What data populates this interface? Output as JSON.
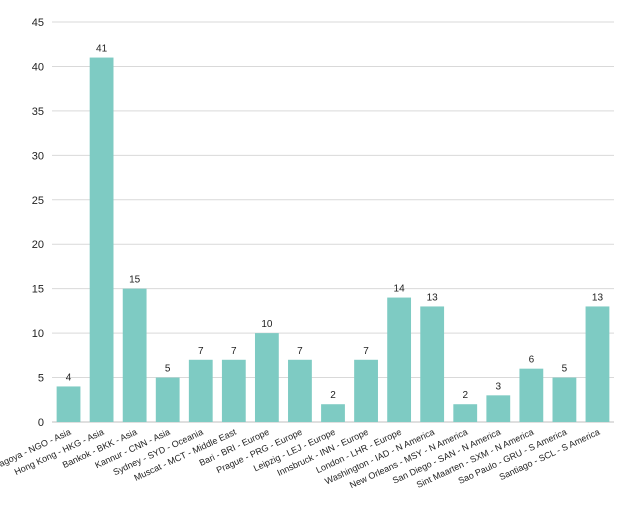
{
  "chart_data": {
    "type": "bar",
    "title": "",
    "xlabel": "",
    "ylabel": "",
    "ylim": [
      0,
      45
    ],
    "yticks": [
      0,
      5,
      10,
      15,
      20,
      25,
      30,
      35,
      40,
      45
    ],
    "grid": true,
    "legend": "none",
    "categories": [
      "Nagoya - NGO - Asia",
      "Hong Kong - HKG - Asia",
      "Bankok - BKK - Asia",
      "Kannur - CNN - Asia",
      "Sydney - SYD - Oceania",
      "Muscat - MCT - Middle East",
      "Bari - BRI - Europe",
      "Prague - PRG - Europe",
      "Leipzig - LEJ - Europe",
      "Innsbruck - INN - Europe",
      "London - LHR - Europe",
      "Washington - IAD - N America",
      "New Orleans - MSY - N America",
      "San Diego - SAN - N America",
      "Sint Maarten - SXM - N America",
      "Sao Paulo - GRU - S America",
      "Santiago - SCL - S America"
    ],
    "values": [
      4,
      41,
      15,
      5,
      7,
      7,
      10,
      7,
      2,
      7,
      14,
      13,
      2,
      3,
      6,
      5,
      13
    ],
    "colors": {
      "bar": "#7ecbc3",
      "grid": "#d9d9d9",
      "axis": "#bfbfbf",
      "text": "#222222"
    }
  }
}
